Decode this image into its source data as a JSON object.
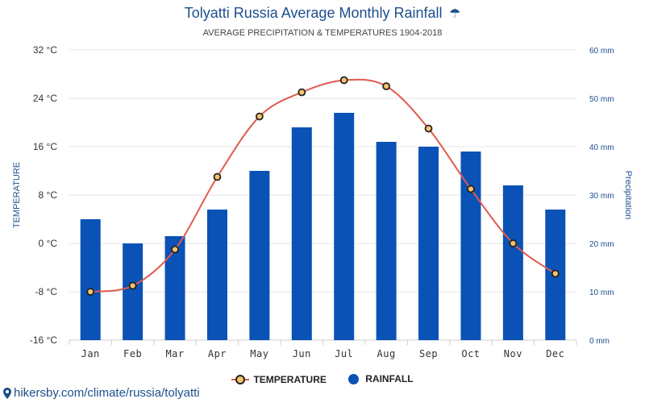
{
  "header": {
    "title": "Tolyatti Russia Average Monthly Rainfall",
    "title_icon": "umbrella-icon",
    "subtitle": "AVERAGE PRECIPITATION & TEMPERATURES 1904-2018"
  },
  "footer": {
    "icon": "location-pin-icon",
    "text": "hikersby.com/climate/russia/tolyatti"
  },
  "colors": {
    "bar": "#0a52b5",
    "line": "#e05a4f",
    "marker_fill": "#f7c26b",
    "marker_stroke": "#222222",
    "title": "#1d4f8c"
  },
  "chart_data": {
    "type": "bar",
    "categories": [
      "Jan",
      "Feb",
      "Mar",
      "Apr",
      "May",
      "Jun",
      "Jul",
      "Aug",
      "Sep",
      "Oct",
      "Nov",
      "Dec"
    ],
    "series": [
      {
        "name": "RAINFALL",
        "type": "bar",
        "axis": "right",
        "unit": "mm",
        "values": [
          25,
          20,
          21.5,
          27,
          35,
          44,
          47,
          41,
          40,
          39,
          32,
          27
        ]
      },
      {
        "name": "TEMPERATURE",
        "type": "line",
        "axis": "left",
        "unit": "°C",
        "values": [
          -8,
          -7,
          -1,
          11,
          21,
          25,
          27,
          26,
          19,
          9,
          0,
          -5
        ]
      }
    ],
    "y_left": {
      "label": "TEMPERATURE",
      "range": [
        -16,
        32
      ],
      "ticks": [
        -16,
        -8,
        0,
        8,
        16,
        24,
        32
      ],
      "tick_labels": [
        "-16 °C",
        "-8 °C",
        "0 °C",
        "8 °C",
        "16 °C",
        "24 °C",
        "32 °C"
      ]
    },
    "y_right": {
      "label": "Precipitation",
      "range": [
        0,
        60
      ],
      "ticks": [
        0,
        10,
        20,
        30,
        40,
        50,
        60
      ],
      "tick_labels": [
        "0 mm",
        "10 mm",
        "20 mm",
        "30 mm",
        "40 mm",
        "50 mm",
        "60 mm"
      ]
    },
    "grid": true,
    "legend_position": "bottom-center"
  }
}
